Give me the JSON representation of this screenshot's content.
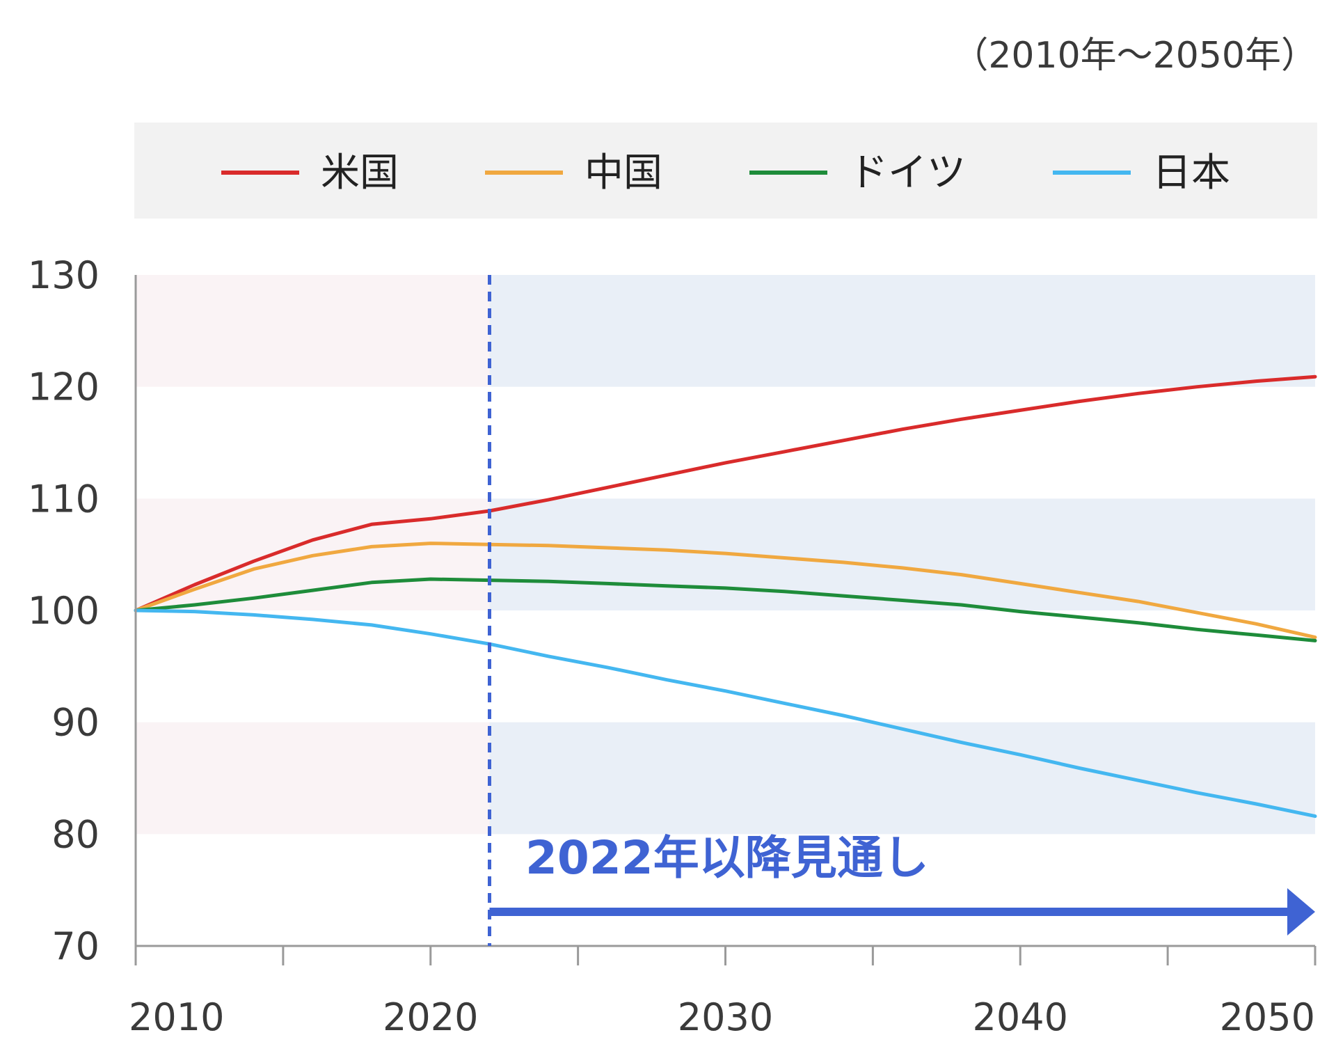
{
  "chart_data": {
    "type": "line",
    "period_note": "（2010年～2050年）",
    "x_ticks": [
      2010,
      2020,
      2030,
      2040,
      2050
    ],
    "x_tick_labels": [
      "2010",
      "2020",
      "2030",
      "2040",
      "2050"
    ],
    "y_ticks": [
      70,
      80,
      90,
      100,
      110,
      120,
      130
    ],
    "y_tick_labels": [
      "70",
      "80",
      "90",
      "100",
      "110",
      "120",
      "130"
    ],
    "xlim": [
      2010,
      2050
    ],
    "ylim": [
      70,
      130
    ],
    "legend_position": "top",
    "forecast_start": 2022,
    "forecast_label": "2022年以降見通し",
    "forecast_color": "#3f63d3",
    "series": [
      {
        "name": "米国",
        "color": "#d92b2b",
        "x": [
          2010,
          2012,
          2014,
          2016,
          2018,
          2020,
          2022,
          2024,
          2026,
          2028,
          2030,
          2032,
          2034,
          2036,
          2038,
          2040,
          2042,
          2044,
          2046,
          2048,
          2050
        ],
        "y": [
          100,
          102.3,
          104.4,
          106.3,
          107.7,
          108.2,
          108.9,
          109.9,
          111.0,
          112.1,
          113.2,
          114.2,
          115.2,
          116.2,
          117.1,
          117.9,
          118.7,
          119.4,
          120.0,
          120.5,
          120.9
        ]
      },
      {
        "name": "中国",
        "color": "#f0a840",
        "x": [
          2010,
          2012,
          2014,
          2016,
          2018,
          2020,
          2022,
          2024,
          2026,
          2028,
          2030,
          2032,
          2034,
          2036,
          2038,
          2040,
          2042,
          2044,
          2046,
          2048,
          2050
        ],
        "y": [
          100,
          101.9,
          103.7,
          104.9,
          105.7,
          106.0,
          105.9,
          105.8,
          105.6,
          105.4,
          105.1,
          104.7,
          104.3,
          103.8,
          103.2,
          102.4,
          101.6,
          100.8,
          99.8,
          98.8,
          97.6
        ]
      },
      {
        "name": "ドイツ",
        "color": "#1e8c3a",
        "x": [
          2010,
          2012,
          2014,
          2016,
          2018,
          2020,
          2022,
          2024,
          2026,
          2028,
          2030,
          2032,
          2034,
          2036,
          2038,
          2040,
          2042,
          2044,
          2046,
          2048,
          2050
        ],
        "y": [
          100,
          100.5,
          101.1,
          101.8,
          102.5,
          102.8,
          102.7,
          102.6,
          102.4,
          102.2,
          102.0,
          101.7,
          101.3,
          100.9,
          100.5,
          99.9,
          99.4,
          98.9,
          98.3,
          97.8,
          97.3
        ]
      },
      {
        "name": "日本",
        "color": "#44b7f0",
        "x": [
          2010,
          2012,
          2014,
          2016,
          2018,
          2020,
          2022,
          2024,
          2026,
          2028,
          2030,
          2032,
          2034,
          2036,
          2038,
          2040,
          2042,
          2044,
          2046,
          2048,
          2050
        ],
        "y": [
          100,
          99.9,
          99.6,
          99.2,
          98.7,
          97.9,
          97.0,
          95.9,
          94.9,
          93.8,
          92.8,
          91.7,
          90.6,
          89.4,
          88.2,
          87.1,
          85.9,
          84.8,
          83.7,
          82.7,
          81.6
        ]
      }
    ]
  }
}
